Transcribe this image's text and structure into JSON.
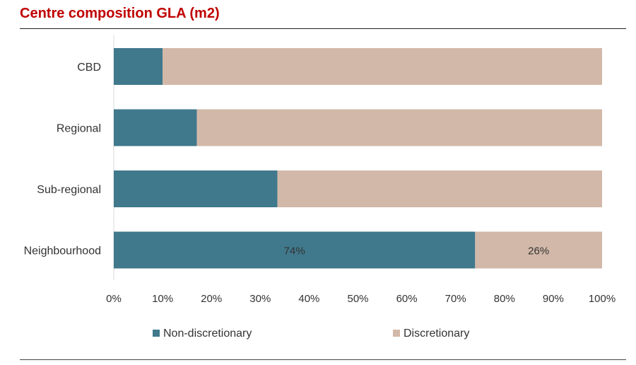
{
  "header": {
    "title": "Centre composition GLA (m2)"
  },
  "chart_data": {
    "type": "bar",
    "orientation": "horizontal",
    "stacked": true,
    "title": "Centre composition GLA (m2)",
    "categories": [
      "CBD",
      "Regional",
      "Sub-regional",
      "Neighbourhood"
    ],
    "series": [
      {
        "name": "Non-discretionary",
        "values": [
          10,
          17,
          33.5,
          74
        ],
        "color": "#40788c",
        "labels": [
          "",
          "",
          "",
          "74%"
        ]
      },
      {
        "name": "Discretionary",
        "values": [
          90,
          83,
          66.5,
          26
        ],
        "color": "#d2b8a8",
        "labels": [
          "",
          "",
          "",
          "26%"
        ]
      }
    ],
    "xlim": [
      0,
      100
    ],
    "xticks": [
      "0%",
      "10%",
      "20%",
      "30%",
      "40%",
      "50%",
      "60%",
      "70%",
      "80%",
      "90%",
      "100%"
    ],
    "grid": false,
    "legend_position": "bottom"
  }
}
